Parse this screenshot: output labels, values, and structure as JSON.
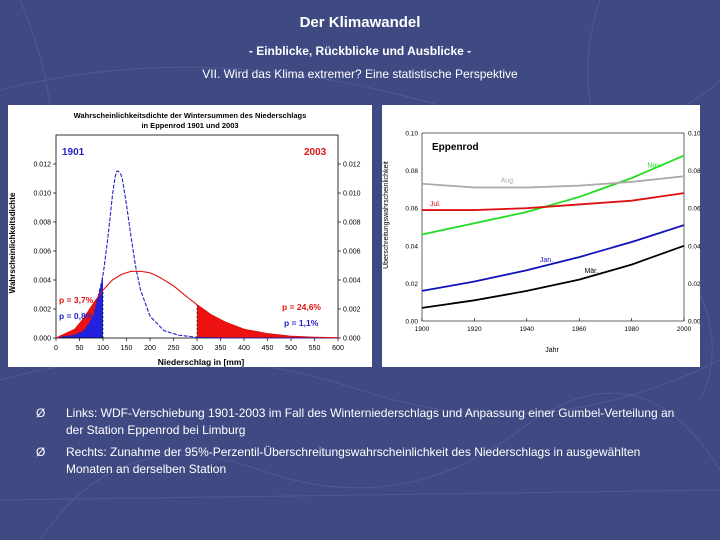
{
  "slide": {
    "title": "Der Klimawandel",
    "subtitle1": "- Einblicke, Rückblicke und Ausblicke -",
    "subtitle2": "VII. Wird das Klima extremer? Eine statistische Perspektive"
  },
  "bullets": [
    {
      "marker": "Ø",
      "text": "Links: WDF-Verschiebung 1901-2003 im Fall des Winterniederschlags und Anpassung einer Gumbel-Verteilung an der Station Eppenrod bei Limburg"
    },
    {
      "marker": "Ø",
      "text": "Rechts: Zunahme der 95%-Perzentil-Überschreitungswahrscheinlichkeit des Niederschlags in ausgewählten Monaten an derselben Station"
    }
  ],
  "chart_data": [
    {
      "type": "line",
      "title": "Wahrscheinlichkeitsdichte der Wintersummen des Niederschlags in Eppenrod 1901 und 2003",
      "title_line1": "Wahrscheinlichkeitsdichte der Wintersummen des Niederschlags",
      "title_line2": "in Eppenrod 1901 und 2003",
      "xlabel": "Niederschlag in [mm]",
      "ylabel": "Wahrscheinlichkeitsdichte",
      "xlim": [
        0,
        600
      ],
      "ylim": [
        0,
        0.014
      ],
      "xticks": [
        "0",
        "50",
        "100",
        "150",
        "200",
        "250",
        "300",
        "350",
        "400",
        "450",
        "500",
        "550",
        "600"
      ],
      "yticks": [
        "0.000",
        "0.002",
        "0.004",
        "0.006",
        "0.008",
        "0.010",
        "0.012"
      ],
      "labels": {
        "y1901": "1901",
        "y2003": "2003",
        "p37": "p = 3,7%",
        "p08": "p = 0,8%",
        "p246": "p = 24,6%",
        "p11": "p = 1,1%"
      },
      "series": [
        {
          "name": "1901",
          "color": "#2222cc",
          "x": [
            0,
            40,
            60,
            80,
            100,
            110,
            120,
            125,
            130,
            140,
            150,
            160,
            170,
            180,
            200,
            230,
            260,
            300,
            350,
            400,
            600
          ],
          "y": [
            0,
            0.0002,
            0.0005,
            0.0015,
            0.0043,
            0.0068,
            0.0098,
            0.011,
            0.0116,
            0.0112,
            0.0092,
            0.0069,
            0.0048,
            0.0033,
            0.0015,
            0.0005,
            0.0002,
            5e-05,
            0,
            0,
            0
          ]
        },
        {
          "name": "2003",
          "color": "#dd1111",
          "x": [
            0,
            40,
            60,
            80,
            100,
            120,
            140,
            160,
            180,
            200,
            220,
            250,
            280,
            300,
            330,
            360,
            400,
            450,
            500,
            550,
            600
          ],
          "y": [
            0,
            0.0006,
            0.0014,
            0.0024,
            0.0033,
            0.004,
            0.0044,
            0.0046,
            0.0046,
            0.0045,
            0.0042,
            0.0036,
            0.0028,
            0.0023,
            0.0016,
            0.0011,
            0.0006,
            0.0003,
            0.00012,
            5e-05,
            2e-05
          ]
        }
      ]
    },
    {
      "type": "line",
      "title": "Eppenrod",
      "xlabel": "Jahr",
      "ylabel": "Überschreitungswahrscheinlichkeit",
      "xlim": [
        1900,
        2000
      ],
      "ylim": [
        0,
        0.1
      ],
      "xticks": [
        "1900",
        "1920",
        "1940",
        "1960",
        "1980",
        "2000"
      ],
      "yticks": [
        "0.00",
        "0.02",
        "0.04",
        "0.06",
        "0.08",
        "0.10"
      ],
      "series": [
        {
          "name": "Nov.",
          "color": "#22dd22",
          "x": [
            1900,
            1920,
            1940,
            1960,
            1980,
            2000
          ],
          "y": [
            0.046,
            0.052,
            0.058,
            0.066,
            0.076,
            0.088
          ]
        },
        {
          "name": "Aug.",
          "color": "#aaaaaa",
          "x": [
            1900,
            1920,
            1940,
            1960,
            1980,
            2000
          ],
          "y": [
            0.073,
            0.071,
            0.071,
            0.072,
            0.074,
            0.077
          ]
        },
        {
          "name": "Jul.",
          "color": "#dd1111",
          "x": [
            1900,
            1920,
            1940,
            1960,
            1980,
            2000
          ],
          "y": [
            0.059,
            0.059,
            0.06,
            0.062,
            0.064,
            0.068
          ]
        },
        {
          "name": "Jan.",
          "color": "#1111bb",
          "x": [
            1900,
            1920,
            1940,
            1960,
            1980,
            2000
          ],
          "y": [
            0.016,
            0.021,
            0.027,
            0.034,
            0.042,
            0.051
          ]
        },
        {
          "name": "Mär.",
          "color": "#000000",
          "x": [
            1900,
            1920,
            1940,
            1960,
            1980,
            2000
          ],
          "y": [
            0.007,
            0.011,
            0.016,
            0.022,
            0.03,
            0.04
          ]
        }
      ]
    }
  ]
}
